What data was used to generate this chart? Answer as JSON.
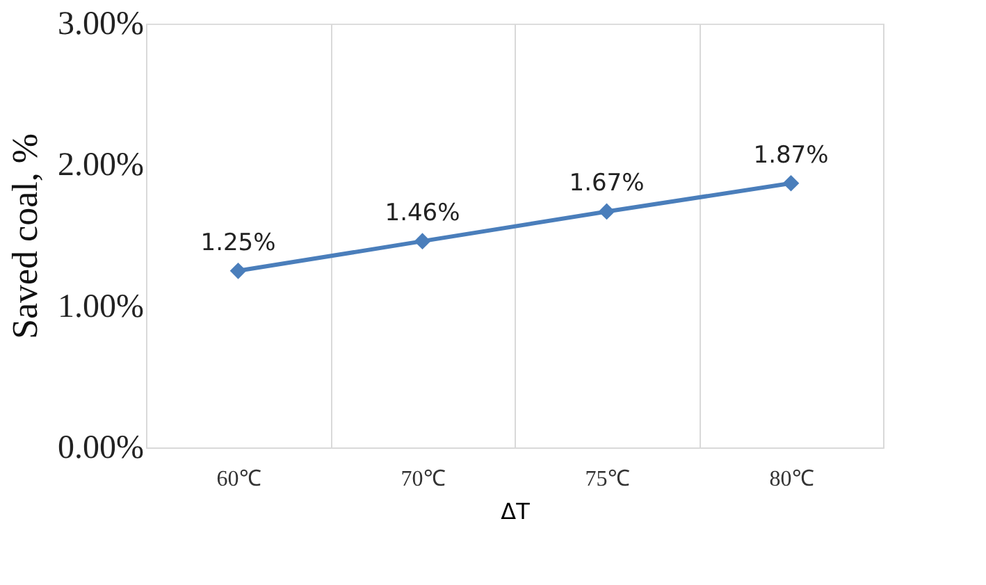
{
  "chart_data": {
    "type": "line",
    "xlabel": "ΔT",
    "ylabel": "Saved coal, %",
    "categories": [
      "60℃",
      "70℃",
      "75℃",
      "80℃"
    ],
    "series": [
      {
        "color": "#4a7ebb",
        "values": [
          1.25,
          1.46,
          1.67,
          1.87
        ],
        "value_labels": [
          "1.25%",
          "1.46%",
          "1.67%",
          "1.87%"
        ]
      }
    ],
    "ylim": [
      0,
      3
    ],
    "yticks": [
      {
        "value": 0,
        "label": "0.00%"
      },
      {
        "value": 1,
        "label": "1.00%"
      },
      {
        "value": 2,
        "label": "2.00%"
      },
      {
        "value": 3,
        "label": "3.00%"
      }
    ],
    "grid": "x",
    "marker": "diamond",
    "line_style": "solid"
  }
}
